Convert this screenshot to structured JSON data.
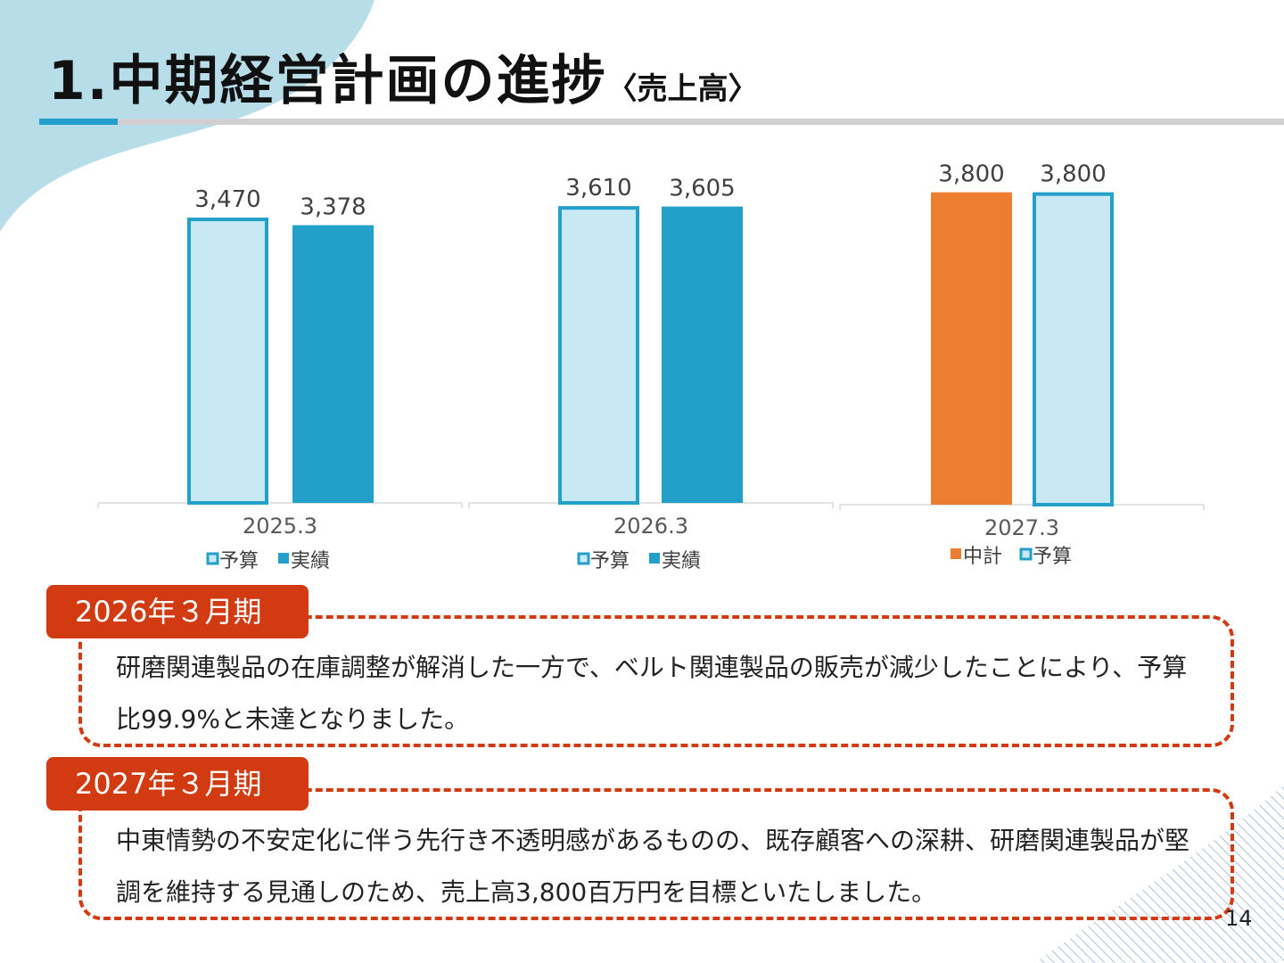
{
  "header": {
    "title": "1.中期経営計画の進捗",
    "subtitle": "〈売上高〉"
  },
  "colors": {
    "plan_fill": "#c8e9f4",
    "plan_border": "#23a0ca",
    "actual": "#23a0ca",
    "midterm": "#ed7d31",
    "accent": "#d23b12",
    "title_bar": "#23a0ca"
  },
  "chart_data": [
    {
      "type": "bar",
      "title": "",
      "xlabel": "2025.3",
      "ylim": [
        0,
        4000
      ],
      "categories": [
        "予算",
        "実績"
      ],
      "values": [
        3470,
        3378
      ],
      "value_labels": [
        "3,470",
        "3,378"
      ],
      "styles": [
        "plan",
        "actual"
      ],
      "legend": [
        "予算",
        "実績"
      ]
    },
    {
      "type": "bar",
      "title": "",
      "xlabel": "2026.3",
      "ylim": [
        0,
        4000
      ],
      "categories": [
        "予算",
        "実績"
      ],
      "values": [
        3610,
        3605
      ],
      "value_labels": [
        "3,610",
        "3,605"
      ],
      "styles": [
        "plan",
        "actual"
      ],
      "legend": [
        "予算",
        "実績"
      ]
    },
    {
      "type": "bar",
      "title": "",
      "xlabel": "2027.3",
      "ylim": [
        0,
        4000
      ],
      "categories": [
        "中計",
        "予算"
      ],
      "values": [
        3800,
        3800
      ],
      "value_labels": [
        "3,800",
        "3,800"
      ],
      "styles": [
        "midterm",
        "plan"
      ],
      "legend": [
        "中計",
        "予算"
      ]
    }
  ],
  "sections": [
    {
      "heading": "2026年３月期",
      "text": "研磨関連製品の在庫調整が解消した一方で、ベルト関連製品の販売が減少したことにより、予算比99.9%と未達となりました。"
    },
    {
      "heading": "2027年３月期",
      "text": "中東情勢の不安定化に伴う先行き不透明感があるものの、既存顧客への深耕、研磨関連製品が堅調を維持する見通しのため、売上高3,800百万円を目標といたしました。"
    }
  ],
  "page_number": "14"
}
